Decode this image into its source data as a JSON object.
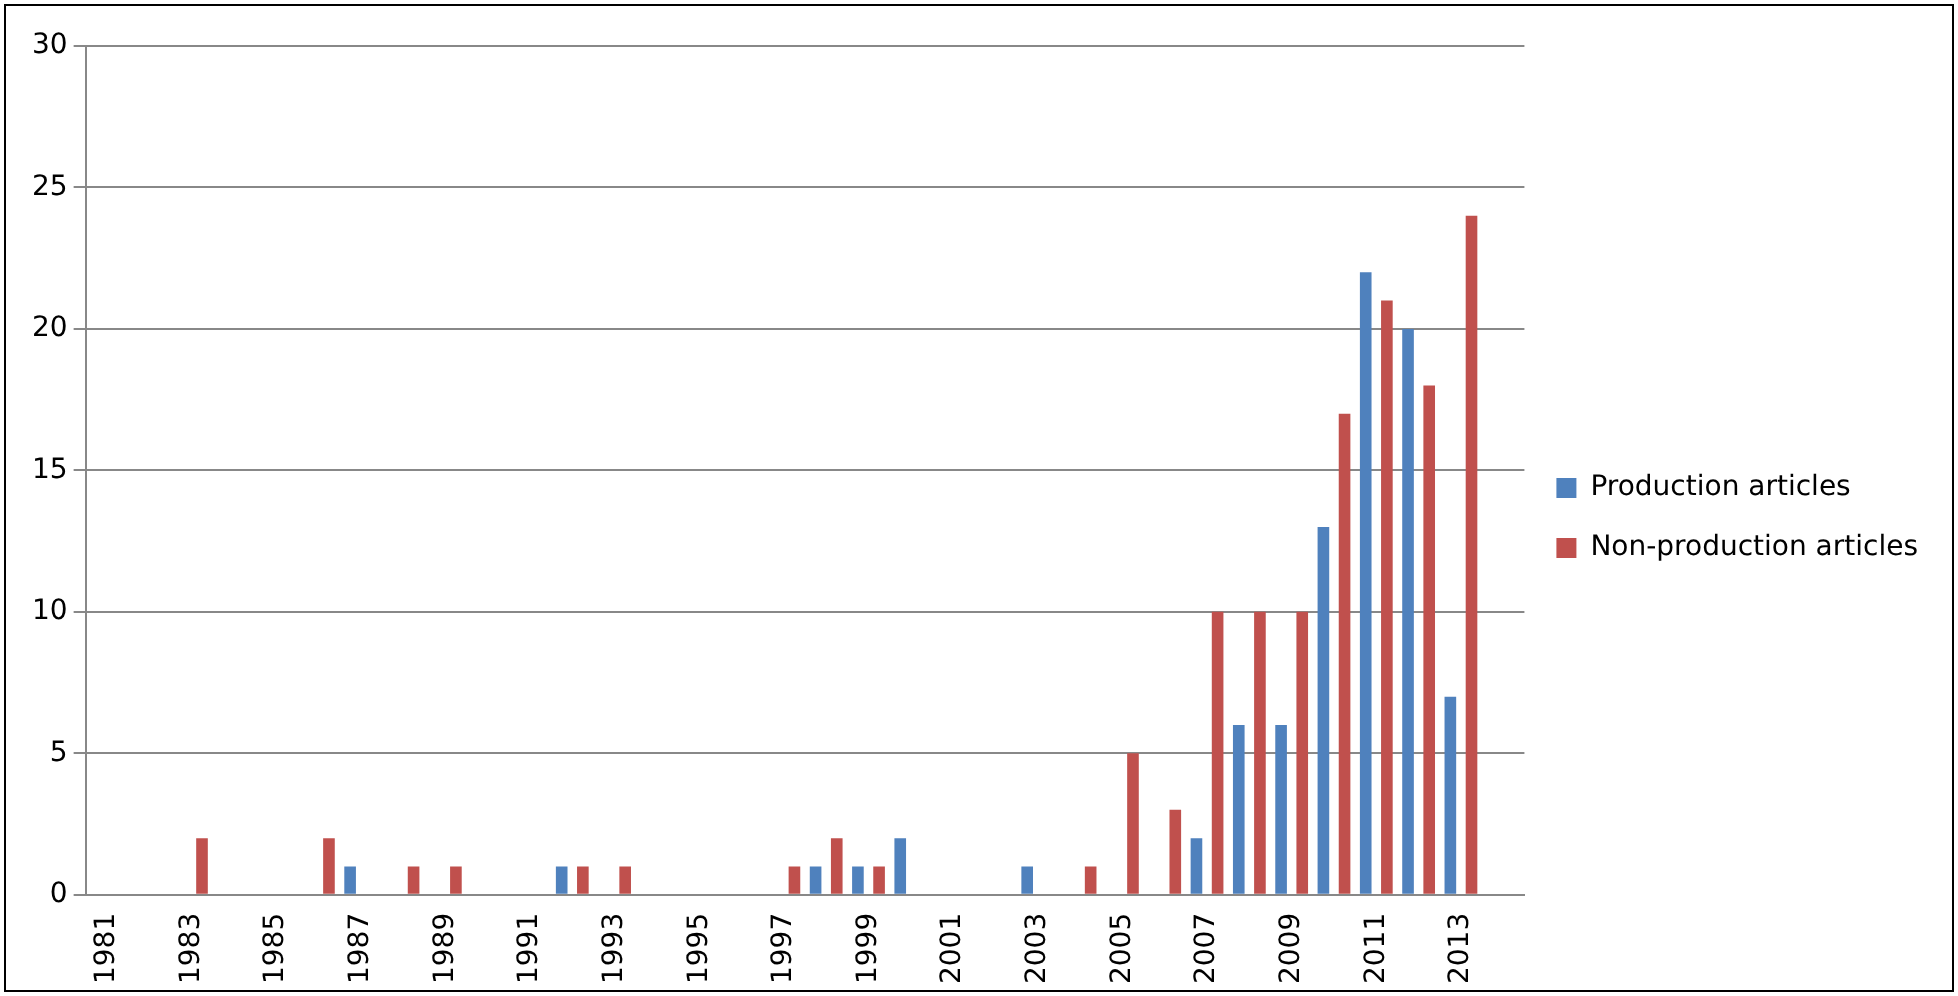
{
  "chart_data": {
    "type": "bar",
    "categories": [
      "1981",
      null,
      "1983",
      null,
      "1985",
      null,
      "1987",
      null,
      "1989",
      null,
      "1991",
      null,
      "1993",
      null,
      "1995",
      null,
      "1997",
      null,
      "1999",
      null,
      "2001",
      null,
      "2003",
      null,
      "2005",
      null,
      "2007",
      null,
      "2009",
      null,
      "2011",
      null,
      "2013",
      null
    ],
    "series": [
      {
        "name": "Production articles",
        "color": "#4f81bd",
        "values": [
          0,
          0,
          0,
          0,
          0,
          0,
          1,
          0,
          0,
          0,
          0,
          1,
          0,
          0,
          0,
          0,
          0,
          1,
          1,
          2,
          0,
          0,
          1,
          0,
          0,
          0,
          2,
          6,
          6,
          13,
          22,
          20,
          7,
          null
        ]
      },
      {
        "name": "Non-production articles",
        "color": "#c0504d",
        "values": [
          0,
          0,
          2,
          0,
          0,
          2,
          0,
          1,
          1,
          0,
          0,
          1,
          1,
          0,
          0,
          0,
          1,
          2,
          1,
          0,
          0,
          0,
          0,
          1,
          5,
          3,
          10,
          10,
          10,
          17,
          21,
          18,
          24,
          null
        ]
      }
    ],
    "ylim": [
      0,
      30
    ],
    "yticks": [
      0,
      5,
      10,
      15,
      20,
      25,
      30
    ],
    "grid": "y",
    "legend": "right"
  }
}
